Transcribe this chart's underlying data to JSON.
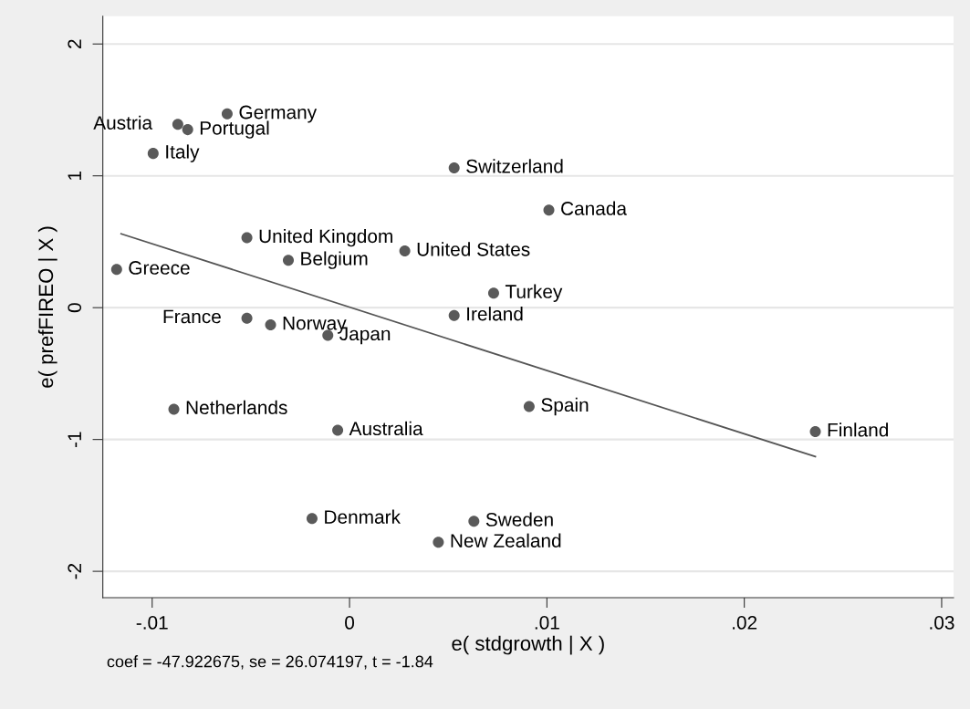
{
  "chart_data": {
    "type": "scatter",
    "xlabel": "e( stdgrowth | X )",
    "ylabel": "e( prefFIREO | X )",
    "xlim": [
      -0.0125,
      0.0306
    ],
    "ylim": [
      -2.2,
      2.21
    ],
    "xticks": [
      {
        "value": -0.01,
        "label": "-.01"
      },
      {
        "value": 0,
        "label": "0"
      },
      {
        "value": 0.01,
        "label": ".01"
      },
      {
        "value": 0.02,
        "label": ".02"
      },
      {
        "value": 0.03,
        "label": ".03"
      }
    ],
    "yticks": [
      {
        "value": -2,
        "label": "-2"
      },
      {
        "value": -1,
        "label": "-1"
      },
      0,
      1,
      2
    ],
    "grid": "y",
    "series": [
      {
        "marker": "circle",
        "color": "#5a5a5a",
        "x": [
          -0.0062,
          -0.0087,
          -0.0082,
          -0.00995,
          0.0053,
          0.0101,
          -0.0052,
          0.0028,
          -0.0031,
          -0.0118,
          0.0073,
          0.0053,
          -0.0052,
          -0.004,
          -0.0011,
          -0.0089,
          0.0091,
          -0.0006,
          0.0236,
          -0.0019,
          0.0063,
          0.0045
        ],
        "values": [
          1.47,
          1.39,
          1.35,
          1.17,
          1.06,
          0.74,
          0.53,
          0.43,
          0.36,
          0.29,
          0.11,
          -0.06,
          -0.08,
          -0.13,
          -0.21,
          -0.77,
          -0.75,
          -0.93,
          -0.94,
          -1.6,
          -1.62,
          -1.78
        ]
      },
      {
        "type": "line",
        "marker": "none",
        "color": "#555555",
        "x": [
          -0.01157,
          0.0236
        ],
        "values": [
          0.56,
          -1.13
        ]
      }
    ],
    "annotations": [
      {
        "text": "Germany",
        "x": -0.0062,
        "y": 1.47
      },
      {
        "text": "Austria",
        "x": -0.0087,
        "y": 1.39
      },
      {
        "text": "Portugal",
        "x": -0.0082,
        "y": 1.35
      },
      {
        "text": "Italy",
        "x": -0.00995,
        "y": 1.17
      },
      {
        "text": "Switzerland",
        "x": 0.0053,
        "y": 1.06
      },
      {
        "text": "Canada",
        "x": 0.0101,
        "y": 0.74
      },
      {
        "text": "United Kingdom",
        "x": -0.0052,
        "y": 0.53
      },
      {
        "text": "United States",
        "x": 0.0028,
        "y": 0.43
      },
      {
        "text": "Belgium",
        "x": -0.0031,
        "y": 0.36
      },
      {
        "text": "Greece",
        "x": -0.0118,
        "y": 0.29
      },
      {
        "text": "Turkey",
        "x": 0.0073,
        "y": 0.11
      },
      {
        "text": "Ireland",
        "x": 0.0053,
        "y": -0.06
      },
      {
        "text": "France",
        "x": -0.0052,
        "y": -0.08
      },
      {
        "text": "Norway",
        "x": -0.004,
        "y": -0.13
      },
      {
        "text": "Japan",
        "x": -0.0011,
        "y": -0.21
      },
      {
        "text": "Netherlands",
        "x": -0.0089,
        "y": -0.77
      },
      {
        "text": "Spain",
        "x": 0.0091,
        "y": -0.75
      },
      {
        "text": "Australia",
        "x": -0.0006,
        "y": -0.93
      },
      {
        "text": "Finland",
        "x": 0.0236,
        "y": -0.94
      },
      {
        "text": "Denmark",
        "x": -0.0019,
        "y": -1.6
      },
      {
        "text": "Sweden",
        "x": 0.0063,
        "y": -1.62
      },
      {
        "text": "New Zealand",
        "x": 0.0045,
        "y": -1.78
      },
      "coef = -47.922675, se = 26.074197, t = -1.84"
    ]
  }
}
